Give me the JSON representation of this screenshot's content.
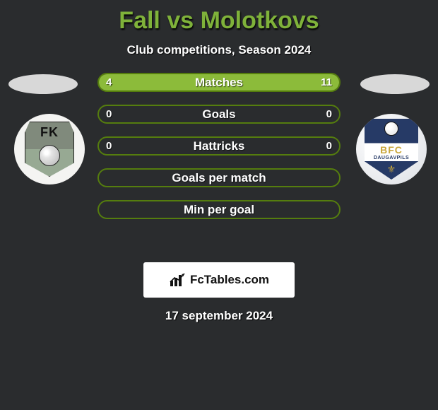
{
  "title_color": "#7fb23a",
  "header": {
    "title": "Fall vs Molotkovs",
    "subtitle": "Club competitions, Season 2024"
  },
  "colors": {
    "primary": "#557d0e",
    "primary_fill": "#8cbb3a",
    "oval": "#d8d8d8"
  },
  "team_left": {
    "badge_text_top": "FK"
  },
  "team_right": {
    "badge_text_main": "BFC",
    "badge_text_sub": "DAUGAVPILS"
  },
  "stats": [
    {
      "label": "Matches",
      "left_value": "4",
      "right_value": "11",
      "left_pct": 26,
      "right_pct": 74,
      "border": "#557d0e",
      "fill": "#8cbb3a",
      "show_values": true
    },
    {
      "label": "Goals",
      "left_value": "0",
      "right_value": "0",
      "left_pct": 0,
      "right_pct": 0,
      "border": "#557d0e",
      "fill": "#8cbb3a",
      "show_values": true
    },
    {
      "label": "Hattricks",
      "left_value": "0",
      "right_value": "0",
      "left_pct": 0,
      "right_pct": 0,
      "border": "#557d0e",
      "fill": "#8cbb3a",
      "show_values": true
    },
    {
      "label": "Goals per match",
      "left_value": "",
      "right_value": "",
      "left_pct": 0,
      "right_pct": 0,
      "border": "#557d0e",
      "fill": "#8cbb3a",
      "show_values": false
    },
    {
      "label": "Min per goal",
      "left_value": "",
      "right_value": "",
      "left_pct": 0,
      "right_pct": 0,
      "border": "#557d0e",
      "fill": "#8cbb3a",
      "show_values": false
    }
  ],
  "brand": {
    "text": "FcTables.com"
  },
  "date": "17 september 2024"
}
